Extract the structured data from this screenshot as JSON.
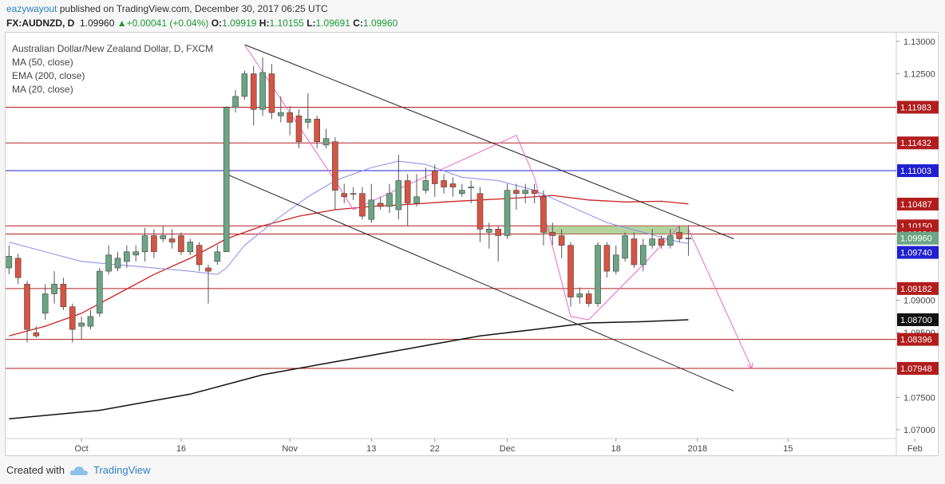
{
  "header": {
    "user": "eazywayout",
    "published": "published on TradingView.com, December 30, 2017 06:25 UTC",
    "symbol": "FX:AUDNZD, D",
    "last": "1.09960",
    "change": "+0.00041 (+0.04%)",
    "o_label": "O:",
    "o_val": "1.09919",
    "h_label": "H:",
    "h_val": "1.10155",
    "l_label": "L:",
    "l_val": "1.09691",
    "c_label": "C:",
    "c_val": "1.09960"
  },
  "legend": {
    "title": "Australian Dollar/New Zealand Dollar, D, FXCM",
    "ma50": "MA (50, close)",
    "ema200": "EMA (200, close)",
    "ma20": "MA (20, close)"
  },
  "footer": {
    "created_with": "Created with",
    "brand": "TradingView"
  },
  "colors": {
    "up": "#6ba583",
    "down": "#d75442",
    "level": "#b11d1d",
    "blue_level": "#2020d0",
    "ma50": "#cc2222",
    "ema200": "#111111",
    "ma20": "#8888ee",
    "pattern": "#ee66cc",
    "channel": "#222222",
    "zone": "#9bc47f"
  },
  "chart_data": {
    "type": "candlestick",
    "symbol": "AUDNZD",
    "timeframe": "D",
    "ylim": [
      1.06864,
      1.13135
    ],
    "y_ticks": [
      "1.13000",
      "1.12500",
      "1.09000",
      "1.08500",
      "1.07500",
      "1.07000"
    ],
    "x_ticks": [
      {
        "label": "Oct",
        "day": 8
      },
      {
        "label": "16",
        "day": 19
      },
      {
        "label": "Nov",
        "day": 31
      },
      {
        "label": "13",
        "day": 40
      },
      {
        "label": "22",
        "day": 47
      },
      {
        "label": "Dec",
        "day": 55
      },
      {
        "label": "18",
        "day": 67
      },
      {
        "label": "2018",
        "day": 76
      },
      {
        "label": "15",
        "day": 86
      },
      {
        "label": "Feb",
        "day": 100
      }
    ],
    "levels": [
      {
        "label": "1.11983",
        "value": 1.11983,
        "kind": "res"
      },
      {
        "label": "1.11432",
        "value": 1.11432,
        "kind": "res"
      },
      {
        "label": "1.11003",
        "value": 1.11003,
        "kind": "blue"
      },
      {
        "label": "1.10487",
        "value": 1.10487,
        "kind": "plain"
      },
      {
        "label": "1.10150",
        "value": 1.1015,
        "kind": "res"
      },
      {
        "label": "1.10024",
        "value": 1.10024,
        "kind": "res"
      },
      {
        "label": "1.09960",
        "value": 1.0996,
        "kind": "last"
      },
      {
        "label": "1.09740",
        "value": 1.0974,
        "kind": "blue"
      },
      {
        "label": "1.09182",
        "value": 1.09182,
        "kind": "res"
      },
      {
        "label": "1.08700",
        "value": 1.087,
        "kind": "dark"
      },
      {
        "label": "1.08396",
        "value": 1.08396,
        "kind": "res"
      },
      {
        "label": "1.07948",
        "value": 1.07948,
        "kind": "res"
      }
    ],
    "candles": [
      [
        0,
        1.095,
        1.0968,
        1.0985,
        1.094
      ],
      [
        1,
        1.0965,
        1.0935,
        1.0972,
        1.0925
      ],
      [
        2,
        1.0925,
        1.0855,
        1.093,
        1.0835
      ],
      [
        3,
        1.085,
        1.0845,
        1.086,
        1.0842
      ],
      [
        4,
        1.088,
        1.091,
        1.0925,
        1.087
      ],
      [
        5,
        1.091,
        1.0925,
        1.0945,
        1.0895
      ],
      [
        6,
        1.0925,
        1.089,
        1.0935,
        1.0885
      ],
      [
        7,
        1.089,
        1.0855,
        1.0895,
        1.0835
      ],
      [
        8,
        1.086,
        1.0865,
        1.0875,
        1.084
      ],
      [
        9,
        1.086,
        1.0875,
        1.0885,
        1.0855
      ],
      [
        10,
        1.088,
        1.0945,
        1.095,
        1.0875
      ],
      [
        11,
        1.0945,
        1.097,
        1.0985,
        1.094
      ],
      [
        12,
        1.095,
        1.0965,
        1.0975,
        1.0945
      ],
      [
        13,
        1.096,
        1.0975,
        1.0985,
        1.095
      ],
      [
        14,
        1.097,
        1.0975,
        1.0985,
        1.096
      ],
      [
        15,
        1.0975,
        1.1,
        1.1012,
        1.096
      ],
      [
        16,
        1.1,
        1.0975,
        1.101,
        1.0965
      ],
      [
        17,
        1.0995,
        1.1,
        1.1015,
        1.099
      ],
      [
        18,
        1.0995,
        1.099,
        1.101,
        1.098
      ],
      [
        19,
        1.1,
        1.0975,
        1.1005,
        1.097
      ],
      [
        20,
        1.0975,
        1.099,
        1.0995,
        1.097
      ],
      [
        21,
        1.0985,
        1.0955,
        1.099,
        1.0945
      ],
      [
        22,
        1.095,
        1.0945,
        1.0955,
        1.0895
      ],
      [
        23,
        1.096,
        1.0975,
        1.0985,
        1.0955
      ],
      [
        24,
        1.0975,
        1.1198,
        1.12,
        1.0975
      ],
      [
        25,
        1.1198,
        1.1215,
        1.1225,
        1.119
      ],
      [
        26,
        1.1215,
        1.125,
        1.1255,
        1.121
      ],
      [
        27,
        1.125,
        1.1195,
        1.1262,
        1.117
      ],
      [
        28,
        1.1195,
        1.1252,
        1.1275,
        1.1185
      ],
      [
        29,
        1.125,
        1.119,
        1.1265,
        1.118
      ],
      [
        30,
        1.1185,
        1.119,
        1.1215,
        1.1175
      ],
      [
        31,
        1.119,
        1.1175,
        1.12,
        1.1155
      ],
      [
        32,
        1.1185,
        1.1145,
        1.1195,
        1.1135
      ],
      [
        33,
        1.1175,
        1.118,
        1.122,
        1.1165
      ],
      [
        34,
        1.118,
        1.1145,
        1.1185,
        1.1135
      ],
      [
        35,
        1.114,
        1.115,
        1.1165,
        1.1135
      ],
      [
        36,
        1.1145,
        1.107,
        1.1152,
        1.104
      ],
      [
        37,
        1.1065,
        1.106,
        1.108,
        1.105
      ],
      [
        38,
        1.1065,
        1.1065,
        1.1075,
        1.1055
      ],
      [
        39,
        1.1065,
        1.103,
        1.1075,
        1.1025
      ],
      [
        40,
        1.1025,
        1.1055,
        1.108,
        1.102
      ],
      [
        41,
        1.105,
        1.1045,
        1.106,
        1.104
      ],
      [
        42,
        1.1045,
        1.1065,
        1.108,
        1.1035
      ],
      [
        43,
        1.104,
        1.1085,
        1.1125,
        1.1025
      ],
      [
        44,
        1.1085,
        1.105,
        1.1095,
        1.1015
      ],
      [
        45,
        1.105,
        1.106,
        1.1095,
        1.1045
      ],
      [
        46,
        1.107,
        1.1085,
        1.1105,
        1.1065
      ],
      [
        47,
        1.11,
        1.108,
        1.111,
        1.106
      ],
      [
        48,
        1.1085,
        1.1075,
        1.1095,
        1.1065
      ],
      [
        49,
        1.108,
        1.1075,
        1.109,
        1.106
      ],
      [
        50,
        1.1065,
        1.107,
        1.108,
        1.106
      ],
      [
        51,
        1.1075,
        1.1075,
        1.1085,
        1.105
      ],
      [
        52,
        1.1065,
        1.101,
        1.1075,
        1.099
      ],
      [
        53,
        1.1005,
        1.101,
        1.102,
        1.098
      ],
      [
        54,
        1.101,
        1.1,
        1.1015,
        1.096
      ],
      [
        55,
        1.1,
        1.107,
        1.108,
        1.0995
      ],
      [
        56,
        1.107,
        1.1065,
        1.108,
        1.104
      ],
      [
        57,
        1.1065,
        1.107,
        1.108,
        1.105
      ],
      [
        58,
        1.107,
        1.1065,
        1.108,
        1.105
      ],
      [
        59,
        1.106,
        1.1005,
        1.107,
        1.0985
      ],
      [
        60,
        1.1005,
        1.1,
        1.102,
        1.0985
      ],
      [
        61,
        1.1,
        1.0985,
        1.101,
        1.0965
      ],
      [
        62,
        1.0985,
        1.0905,
        1.099,
        1.089
      ],
      [
        63,
        1.0905,
        1.091,
        1.092,
        1.0895
      ],
      [
        64,
        1.091,
        1.0895,
        1.0915,
        1.089
      ],
      [
        65,
        1.0895,
        1.0985,
        1.099,
        1.089
      ],
      [
        66,
        1.0985,
        1.0945,
        1.099,
        1.0935
      ],
      [
        67,
        1.0945,
        1.097,
        1.0985,
        1.094
      ],
      [
        68,
        1.0965,
        1.1,
        1.1005,
        1.096
      ],
      [
        69,
        1.0995,
        1.0955,
        1.1005,
        1.095
      ],
      [
        70,
        1.0955,
        1.0985,
        1.0995,
        1.0945
      ],
      [
        71,
        1.0985,
        1.0995,
        1.101,
        1.098
      ],
      [
        72,
        1.0995,
        1.0985,
        1.1,
        1.098
      ],
      [
        73,
        1.0985,
        1.1,
        1.101,
        1.098
      ],
      [
        74,
        1.1005,
        1.0995,
        1.1015,
        1.099
      ],
      [
        75,
        1.0995,
        1.0996,
        1.1016,
        1.0969
      ]
    ],
    "ma20": [
      [
        0,
        1.099
      ],
      [
        4,
        1.0975
      ],
      [
        8,
        1.096
      ],
      [
        12,
        1.0955
      ],
      [
        16,
        1.095
      ],
      [
        20,
        1.0945
      ],
      [
        23,
        1.094
      ],
      [
        24,
        1.095
      ],
      [
        26,
        1.0985
      ],
      [
        30,
        1.103
      ],
      [
        33,
        1.106
      ],
      [
        36,
        1.1085
      ],
      [
        40,
        1.1105
      ],
      [
        43,
        1.1115
      ],
      [
        46,
        1.111
      ],
      [
        50,
        1.109
      ],
      [
        54,
        1.1085
      ],
      [
        58,
        1.107
      ],
      [
        62,
        1.1045
      ],
      [
        66,
        1.102
      ],
      [
        70,
        1.1005
      ],
      [
        74,
        1.099
      ],
      [
        75,
        1.0988
      ]
    ],
    "ma50": [
      [
        0,
        1.0845
      ],
      [
        4,
        1.086
      ],
      [
        8,
        1.088
      ],
      [
        12,
        1.091
      ],
      [
        16,
        1.094
      ],
      [
        20,
        1.0965
      ],
      [
        24,
        1.0995
      ],
      [
        28,
        1.1015
      ],
      [
        32,
        1.103
      ],
      [
        36,
        1.104
      ],
      [
        40,
        1.1045
      ],
      [
        44,
        1.1048
      ],
      [
        48,
        1.1052
      ],
      [
        52,
        1.1055
      ],
      [
        56,
        1.1058
      ],
      [
        60,
        1.1062
      ],
      [
        64,
        1.1055
      ],
      [
        68,
        1.1052
      ],
      [
        72,
        1.1053
      ],
      [
        75,
        1.1049
      ]
    ],
    "ema200": [
      [
        0,
        1.0717
      ],
      [
        10,
        1.073
      ],
      [
        20,
        1.0755
      ],
      [
        28,
        1.0785
      ],
      [
        34,
        1.08
      ],
      [
        40,
        1.0815
      ],
      [
        46,
        1.083
      ],
      [
        52,
        1.0845
      ],
      [
        58,
        1.0855
      ],
      [
        64,
        1.0865
      ],
      [
        70,
        1.0867
      ],
      [
        75,
        1.087
      ]
    ],
    "pattern_line": [
      [
        26,
        1.1295
      ],
      [
        36,
        1.1085
      ],
      [
        38,
        1.104
      ],
      [
        56,
        1.1155
      ],
      [
        58,
        1.109
      ],
      [
        62,
        1.0875
      ],
      [
        64,
        1.087
      ],
      [
        70,
        1.0955
      ],
      [
        74,
        1.1015
      ]
    ],
    "projection": [
      [
        75,
        1.101
      ],
      [
        82,
        1.0795
      ]
    ],
    "channel_upper": [
      [
        26,
        1.1295
      ],
      [
        80,
        1.0995
      ]
    ],
    "channel_lower": [
      [
        24,
        1.1095
      ],
      [
        80,
        1.076
      ]
    ],
    "zone": {
      "from_day": 59,
      "to_day": 75,
      "top": 1.1015,
      "bottom": 1.10024
    }
  }
}
